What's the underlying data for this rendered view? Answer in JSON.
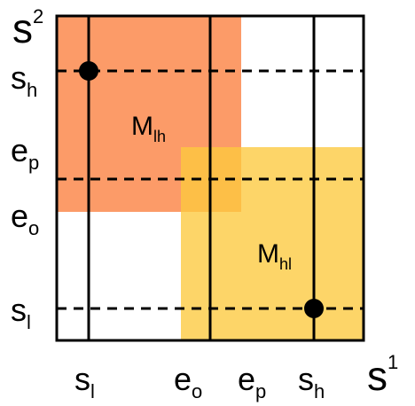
{
  "axes": {
    "y": {
      "base": "s",
      "sup": "2"
    },
    "x": {
      "base": "s",
      "sup": "1"
    }
  },
  "ticks": {
    "y": [
      {
        "base": "s",
        "sub": "h"
      },
      {
        "base": "e",
        "sub": "p"
      },
      {
        "base": "e",
        "sub": "o"
      },
      {
        "base": "s",
        "sub": "l"
      }
    ],
    "x": [
      {
        "base": "s",
        "sub": "l"
      },
      {
        "base": "e",
        "sub": "o"
      },
      {
        "base": "e",
        "sub": "p"
      },
      {
        "base": "s",
        "sub": "h"
      }
    ]
  },
  "regions": {
    "lh": {
      "base": "M",
      "sub": "lh",
      "color": "#fb8a4e"
    },
    "hl": {
      "base": "M",
      "sub": "hl",
      "color": "#fcc93d"
    }
  },
  "colors": {
    "line": "#000000",
    "background": "#ffffff"
  }
}
